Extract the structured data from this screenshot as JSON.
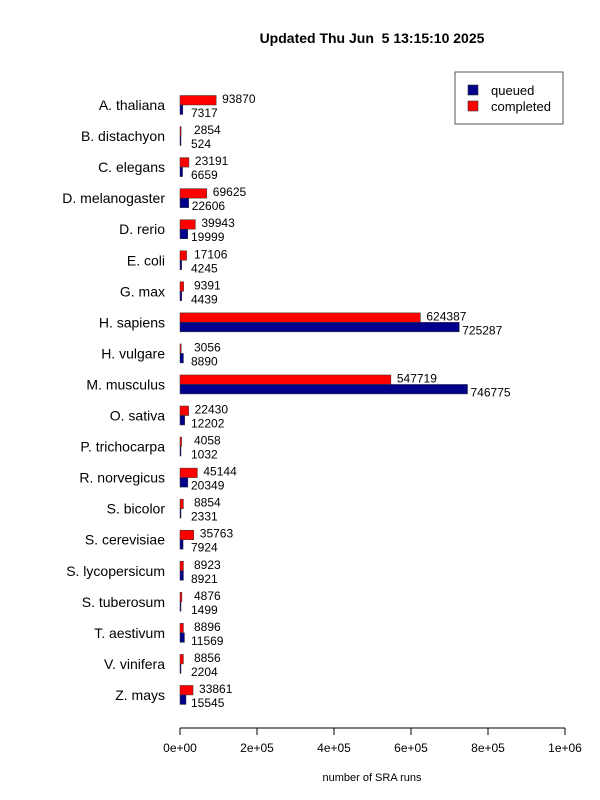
{
  "chart_data": {
    "type": "bar",
    "orientation": "horizontal",
    "title": "Updated Thu Jun  5 13:15:10 2025",
    "xlabel": "number of SRA runs",
    "ylabel": "",
    "xlim": [
      0,
      1000000
    ],
    "xticks": [
      0,
      200000,
      400000,
      600000,
      800000,
      1000000
    ],
    "xtick_labels": [
      "0e+00",
      "2e+05",
      "4e+05",
      "6e+05",
      "8e+05",
      "1e+06"
    ],
    "grid": false,
    "legend_position": "top-right",
    "categories": [
      "A. thaliana",
      "B. distachyon",
      "C. elegans",
      "D. melanogaster",
      "D. rerio",
      "E. coli",
      "G. max",
      "H. sapiens",
      "H. vulgare",
      "M. musculus",
      "O. sativa",
      "P. trichocarpa",
      "R. norvegicus",
      "S. bicolor",
      "S. cerevisiae",
      "S. lycopersicum",
      "S. tuberosum",
      "T. aestivum",
      "V. vinifera",
      "Z. mays"
    ],
    "series": [
      {
        "name": "queued",
        "color": "#00008B",
        "values": [
          7317,
          524,
          6659,
          22606,
          19999,
          4245,
          4439,
          725287,
          8890,
          746775,
          12202,
          1032,
          20349,
          2331,
          7924,
          8921,
          1499,
          11569,
          2204,
          15545
        ]
      },
      {
        "name": "completed",
        "color": "#FF0000",
        "values": [
          93870,
          2854,
          23191,
          69625,
          39943,
          17106,
          9391,
          624387,
          3056,
          547719,
          22430,
          4058,
          45144,
          8854,
          35763,
          8923,
          4876,
          8896,
          8856,
          33861
        ]
      }
    ]
  }
}
